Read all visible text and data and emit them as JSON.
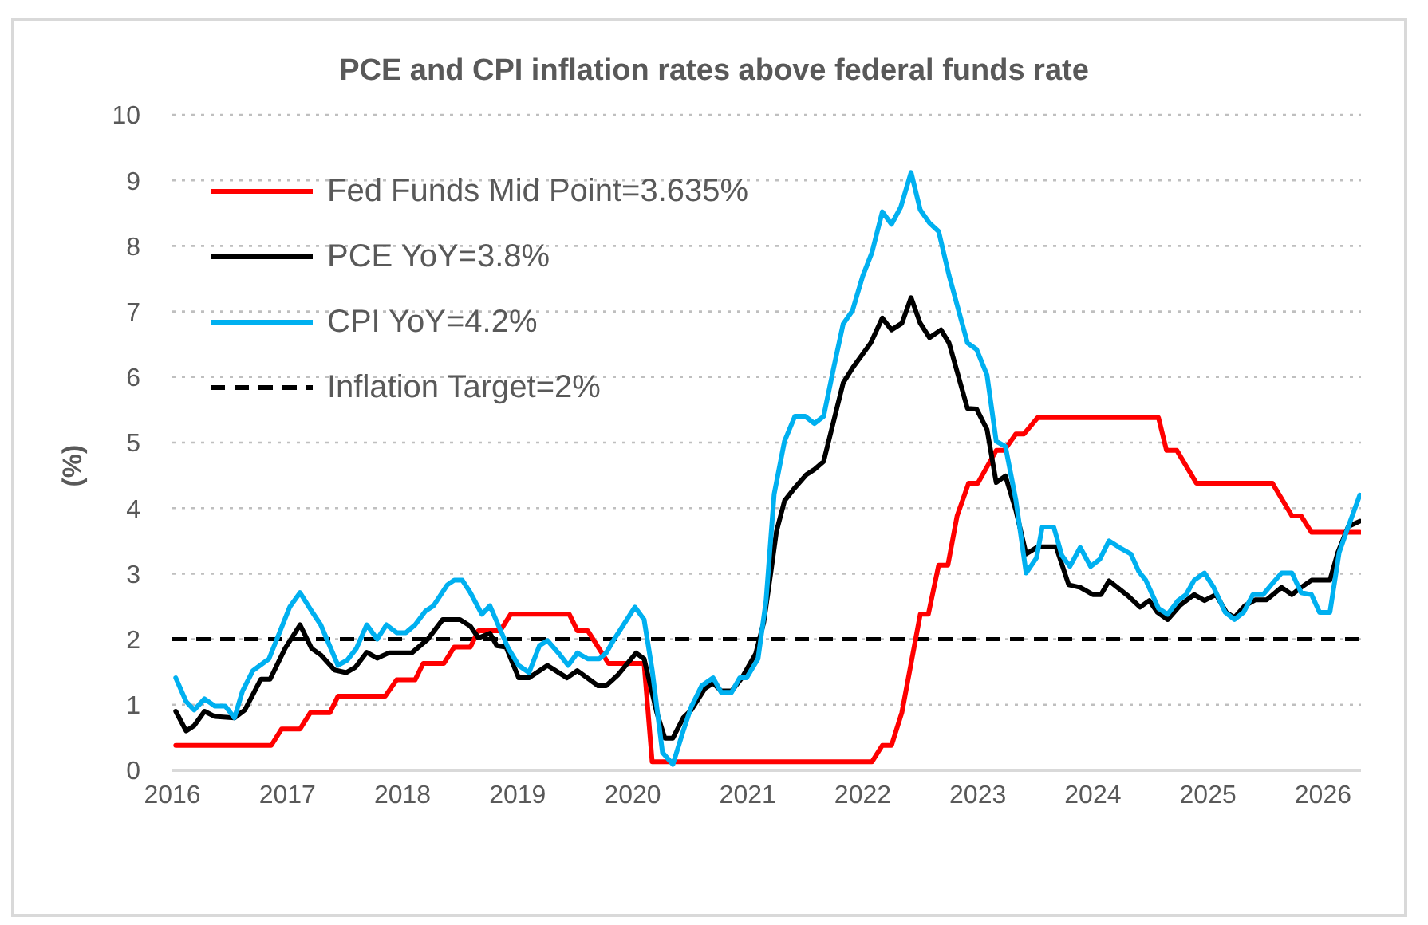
{
  "chart_data": {
    "type": "line",
    "title": "PCE and CPI inflation rates above federal funds rate",
    "ylabel": "(%)",
    "xlim": [
      2016,
      2026.33
    ],
    "xticks": [
      2016,
      2017,
      2018,
      2019,
      2020,
      2021,
      2022,
      2023,
      2024,
      2025,
      2026
    ],
    "ylim": [
      0,
      10
    ],
    "yticks": [
      0,
      1,
      2,
      3,
      4,
      5,
      6,
      7,
      8,
      9,
      10
    ],
    "grid": "y",
    "legend": "top left",
    "series": [
      {
        "name": "Fed Funds Mid Point=3.635%",
        "color": "#ff0000",
        "x": [
          2016.03,
          2016.86,
          2016.95,
          2017.11,
          2017.2,
          2017.37,
          2017.44,
          2017.85,
          2017.95,
          2018.11,
          2018.18,
          2018.36,
          2018.45,
          2018.59,
          2018.66,
          2018.85,
          2018.94,
          2019.45,
          2019.52,
          2019.61,
          2019.79,
          2020.1,
          2020.17,
          2022.08,
          2022.17,
          2022.25,
          2022.34,
          2022.5,
          2022.57,
          2022.66,
          2022.74,
          2022.82,
          2022.92,
          2023.0,
          2023.16,
          2023.23,
          2023.33,
          2023.4,
          2023.52,
          2024.57,
          2024.64,
          2024.73,
          2024.9,
          2025.56,
          2025.73,
          2025.81,
          2025.9,
          2026.32
        ],
        "values": [
          0.38,
          0.38,
          0.63,
          0.63,
          0.88,
          0.88,
          1.13,
          1.13,
          1.38,
          1.38,
          1.63,
          1.63,
          1.88,
          1.88,
          2.13,
          2.13,
          2.38,
          2.38,
          2.13,
          2.13,
          1.63,
          1.63,
          0.13,
          0.13,
          0.38,
          0.38,
          0.88,
          2.38,
          2.38,
          3.13,
          3.13,
          3.88,
          4.38,
          4.38,
          4.88,
          4.88,
          5.13,
          5.13,
          5.38,
          5.38,
          4.88,
          4.88,
          4.38,
          4.38,
          3.88,
          3.88,
          3.63,
          3.63
        ]
      },
      {
        "name": "PCE YoY=3.8%",
        "color": "#000000",
        "x": [
          2016.03,
          2016.12,
          2016.19,
          2016.28,
          2016.37,
          2016.54,
          2016.63,
          2016.77,
          2016.85,
          2016.98,
          2017.11,
          2017.21,
          2017.29,
          2017.41,
          2017.51,
          2017.59,
          2017.69,
          2017.78,
          2017.88,
          2018.08,
          2018.22,
          2018.35,
          2018.5,
          2018.59,
          2018.66,
          2018.76,
          2018.82,
          2018.9,
          2019.01,
          2019.1,
          2019.26,
          2019.43,
          2019.52,
          2019.7,
          2019.77,
          2019.87,
          2020.03,
          2020.1,
          2020.21,
          2020.28,
          2020.35,
          2020.44,
          2020.51,
          2020.63,
          2020.7,
          2020.77,
          2020.86,
          2020.95,
          2021.07,
          2021.14,
          2021.2,
          2021.25,
          2021.32,
          2021.41,
          2021.51,
          2021.58,
          2021.66,
          2021.83,
          2021.92,
          2022.07,
          2022.17,
          2022.25,
          2022.34,
          2022.42,
          2022.5,
          2022.58,
          2022.68,
          2022.75,
          2022.91,
          2022.99,
          2023.08,
          2023.16,
          2023.24,
          2023.33,
          2023.42,
          2023.52,
          2023.68,
          2023.79,
          2023.89,
          2024.0,
          2024.07,
          2024.14,
          2024.3,
          2024.41,
          2024.49,
          2024.56,
          2024.65,
          2024.76,
          2024.88,
          2024.97,
          2025.07,
          2025.16,
          2025.23,
          2025.32,
          2025.41,
          2025.51,
          2025.64,
          2025.73,
          2025.81,
          2025.9,
          2026.06,
          2026.13,
          2026.22,
          2026.32
        ],
        "values": [
          0.9,
          0.6,
          0.68,
          0.9,
          0.82,
          0.8,
          0.92,
          1.39,
          1.39,
          1.86,
          2.22,
          1.86,
          1.76,
          1.53,
          1.49,
          1.57,
          1.8,
          1.71,
          1.79,
          1.79,
          2.0,
          2.3,
          2.3,
          2.2,
          2.02,
          2.09,
          1.9,
          1.88,
          1.41,
          1.41,
          1.6,
          1.41,
          1.52,
          1.29,
          1.29,
          1.45,
          1.79,
          1.7,
          0.88,
          0.49,
          0.49,
          0.8,
          0.92,
          1.25,
          1.33,
          1.21,
          1.21,
          1.41,
          1.78,
          2.26,
          3.0,
          3.64,
          4.11,
          4.31,
          4.51,
          4.59,
          4.71,
          5.91,
          6.16,
          6.52,
          6.9,
          6.72,
          6.82,
          7.21,
          6.82,
          6.6,
          6.72,
          6.52,
          5.52,
          5.51,
          5.2,
          4.39,
          4.49,
          3.97,
          3.3,
          3.41,
          3.41,
          2.83,
          2.79,
          2.68,
          2.68,
          2.89,
          2.67,
          2.49,
          2.59,
          2.41,
          2.3,
          2.52,
          2.68,
          2.59,
          2.68,
          2.41,
          2.33,
          2.51,
          2.6,
          2.6,
          2.79,
          2.68,
          2.79,
          2.9,
          2.9,
          3.33,
          3.72,
          3.8
        ]
      },
      {
        "name": "CPI YoY=4.2%",
        "color": "#00b0f0",
        "x": [
          2016.03,
          2016.12,
          2016.19,
          2016.28,
          2016.37,
          2016.46,
          2016.54,
          2016.61,
          2016.7,
          2016.84,
          2017.02,
          2017.11,
          2017.21,
          2017.29,
          2017.44,
          2017.52,
          2017.6,
          2017.69,
          2017.78,
          2017.86,
          2017.95,
          2018.03,
          2018.11,
          2018.2,
          2018.27,
          2018.39,
          2018.45,
          2018.52,
          2018.59,
          2018.69,
          2018.76,
          2018.92,
          2019.01,
          2019.1,
          2019.19,
          2019.26,
          2019.36,
          2019.44,
          2019.52,
          2019.61,
          2019.71,
          2019.77,
          2019.84,
          2020.02,
          2020.1,
          2020.17,
          2020.26,
          2020.35,
          2020.44,
          2020.51,
          2020.6,
          2020.7,
          2020.77,
          2020.86,
          2020.93,
          2020.99,
          2021.09,
          2021.16,
          2021.23,
          2021.32,
          2021.41,
          2021.5,
          2021.58,
          2021.66,
          2021.75,
          2021.83,
          2021.91,
          2022.0,
          2022.08,
          2022.17,
          2022.25,
          2022.33,
          2022.42,
          2022.5,
          2022.58,
          2022.66,
          2022.75,
          2022.91,
          2022.99,
          2023.08,
          2023.16,
          2023.24,
          2023.33,
          2023.42,
          2023.51,
          2023.56,
          2023.66,
          2023.73,
          2023.8,
          2023.89,
          2023.98,
          2024.06,
          2024.14,
          2024.23,
          2024.33,
          2024.4,
          2024.46,
          2024.57,
          2024.65,
          2024.74,
          2024.81,
          2024.88,
          2024.97,
          2025.05,
          2025.15,
          2025.23,
          2025.31,
          2025.39,
          2025.48,
          2025.55,
          2025.64,
          2025.73,
          2025.81,
          2025.9,
          2025.97,
          2026.06,
          2026.14,
          2026.22,
          2026.32
        ],
        "values": [
          1.41,
          1.05,
          0.92,
          1.09,
          0.98,
          0.98,
          0.8,
          1.21,
          1.52,
          1.7,
          2.49,
          2.71,
          2.43,
          2.22,
          1.6,
          1.68,
          1.86,
          2.22,
          2.0,
          2.22,
          2.1,
          2.1,
          2.22,
          2.43,
          2.51,
          2.83,
          2.9,
          2.9,
          2.71,
          2.38,
          2.51,
          1.86,
          1.6,
          1.49,
          1.9,
          1.98,
          1.78,
          1.6,
          1.79,
          1.7,
          1.7,
          1.79,
          2.0,
          2.49,
          2.3,
          1.53,
          0.27,
          0.09,
          0.6,
          0.97,
          1.29,
          1.41,
          1.19,
          1.19,
          1.41,
          1.41,
          1.7,
          2.59,
          4.21,
          5.02,
          5.4,
          5.4,
          5.29,
          5.4,
          6.16,
          6.81,
          7.01,
          7.54,
          7.9,
          8.52,
          8.33,
          8.59,
          9.12,
          8.55,
          8.35,
          8.22,
          7.55,
          6.52,
          6.42,
          6.03,
          5.02,
          4.94,
          4.13,
          3.01,
          3.24,
          3.71,
          3.71,
          3.28,
          3.11,
          3.4,
          3.11,
          3.22,
          3.5,
          3.4,
          3.3,
          3.03,
          2.9,
          2.47,
          2.38,
          2.59,
          2.68,
          2.9,
          3.01,
          2.79,
          2.41,
          2.3,
          2.41,
          2.68,
          2.68,
          2.83,
          3.01,
          3.01,
          2.71,
          2.68,
          2.41,
          2.41,
          3.32,
          3.72,
          4.2
        ]
      }
    ],
    "ref_lines": [
      {
        "axis": "y",
        "value": 2,
        "label": "Inflation Target=2%",
        "color": "#000000",
        "line_style": "dashed"
      }
    ]
  }
}
